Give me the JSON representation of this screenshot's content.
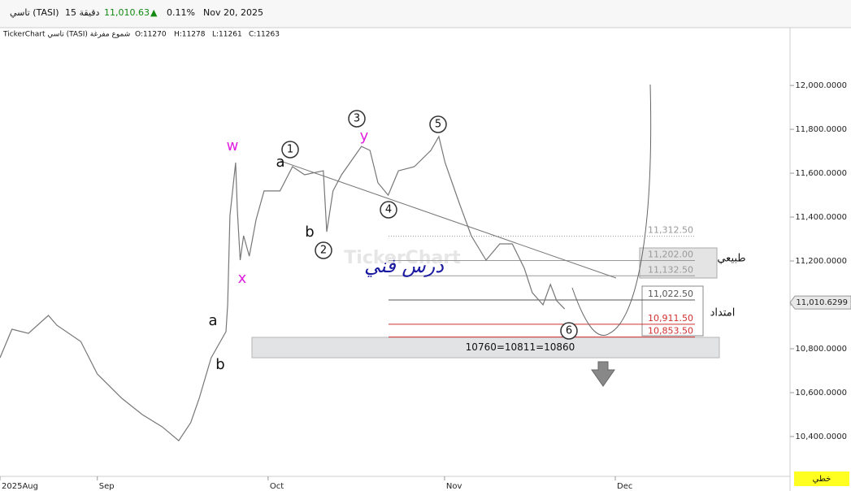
{
  "header": {
    "symbol": "تاسي (TASI)",
    "interval": "15 دقيقة",
    "price": "11,010.63",
    "arrow": "▲",
    "change": "0.11%",
    "date": "Nov 20, 2025"
  },
  "info": {
    "source": "TickerChart تاسي (TASI) شموع مفرغة",
    "open": "O:11270",
    "high": "H:11278",
    "low": "L:11261",
    "close": "C:11263"
  },
  "chart_data": {
    "type": "line",
    "color": "#777777",
    "x": [
      13.9,
      16.0,
      18.9,
      22.4,
      23.9,
      28.1,
      31,
      35.3,
      38.9,
      42.4,
      45.3,
      47.4,
      48.9,
      51,
      53.6,
      53.9,
      54.3,
      55.3,
      55.6,
      56.1,
      56.7,
      57.7,
      58.9,
      60.3,
      63.1,
      65.3,
      67.4,
      70.7,
      71.3,
      72.4,
      73.9,
      77.4,
      78.9,
      80.3,
      82.1,
      83.9,
      86.7,
      89.6,
      91,
      92.1,
      94.6,
      96.7,
      99.3,
      101.7,
      103.9,
      106,
      107.4,
      109.3,
      110.6,
      111.7,
      113.1
    ],
    "values": [
      10759,
      10889,
      10870,
      10952,
      10907,
      10833,
      10685,
      10574,
      10500,
      10444,
      10381,
      10463,
      10574,
      10759,
      10878,
      11000,
      11407,
      11648,
      11433,
      11204,
      11315,
      11222,
      11389,
      11519,
      11519,
      11630,
      11593,
      11611,
      11333,
      11519,
      11593,
      11722,
      11704,
      11556,
      11500,
      11611,
      11630,
      11704,
      11767,
      11648,
      11463,
      11315,
      11204,
      11278,
      11278,
      11167,
      11056,
      11000,
      11093,
      11019,
      10981
    ],
    "xlim": [
      13.9,
      152.7
    ],
    "xticks": [
      {
        "value": 13.9,
        "label": "2025Aug"
      },
      {
        "value": 31,
        "label": "Sep"
      },
      {
        "value": 61,
        "label": "Oct"
      },
      {
        "value": 92,
        "label": "Nov"
      },
      {
        "value": 122,
        "label": "Dec"
      }
    ],
    "ylim": [
      10248,
      12256
    ],
    "yticks": [
      {
        "value": 10400,
        "label": "10,400.0000"
      },
      {
        "value": 10600,
        "label": "10,600.0000"
      },
      {
        "value": 10800,
        "label": "10,800.0000"
      },
      {
        "value": 11000,
        "label": "11,000.0000"
      },
      {
        "value": 11200,
        "label": "11,200.0000"
      },
      {
        "value": 11400,
        "label": "11,400.0000"
      },
      {
        "value": 11600,
        "label": "11,600.0000"
      },
      {
        "value": 11800,
        "label": "11,800.0000"
      },
      {
        "value": 12000,
        "label": "12,000.0000"
      }
    ],
    "last_price": {
      "value": 11010.6299,
      "label": "11,010.6299"
    },
    "levels": [
      {
        "value": 11312.5,
        "label": "11,312.50",
        "color": "#999999"
      },
      {
        "value": 11202,
        "label": "11,202.00",
        "color": "#999999"
      },
      {
        "value": 11132.5,
        "label": "11,132.50",
        "color": "#999999"
      },
      {
        "value": 11022.5,
        "label": "11,022.50",
        "color": "#555555"
      },
      {
        "value": 10911.5,
        "label": "10,911.50",
        "color": "#d03030"
      },
      {
        "value": 10853.5,
        "label": "10,853.50",
        "color": "#d03030"
      }
    ],
    "zone": {
      "label": "10760=10811=10860",
      "range": [
        10759,
        10852
      ]
    },
    "notes": {
      "normal": "طبيعي",
      "extension": "امتداد",
      "lesson": "درس فني",
      "watermark": "TickerChart"
    },
    "annotations": [
      {
        "text": "w",
        "color": "#e01ee0"
      },
      {
        "text": "x",
        "color": "#e01ee0"
      },
      {
        "text": "y",
        "color": "#e01ee0"
      },
      {
        "text": "a",
        "color": "#111111"
      },
      {
        "text": "b",
        "color": "#111111"
      },
      {
        "text": "a",
        "color": "#111111"
      },
      {
        "text": "b",
        "color": "#111111"
      },
      {
        "text": "1",
        "color": "#111111"
      },
      {
        "text": "2",
        "color": "#111111"
      },
      {
        "text": "3",
        "color": "#111111"
      },
      {
        "text": "4",
        "color": "#111111"
      },
      {
        "text": "5",
        "color": "#111111"
      },
      {
        "text": "6",
        "color": "#111111"
      }
    ]
  },
  "footer": {
    "mode": "خطي"
  }
}
